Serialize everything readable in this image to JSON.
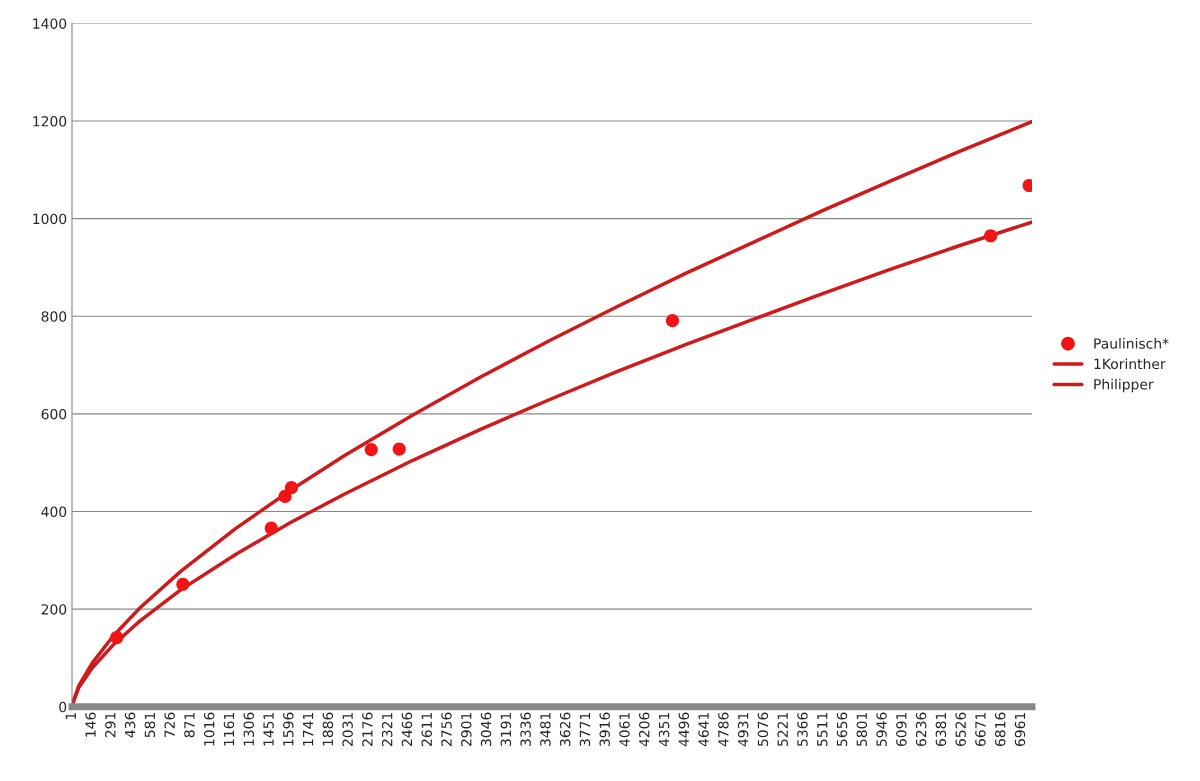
{
  "chart_data": {
    "type": "line",
    "xlim": [
      1,
      7040
    ],
    "xticks": [
      1,
      146,
      291,
      436,
      581,
      726,
      871,
      1016,
      1161,
      1306,
      1451,
      1596,
      1741,
      1886,
      2031,
      2176,
      2321,
      2466,
      2611,
      2756,
      2901,
      3046,
      3191,
      3336,
      3481,
      3626,
      3771,
      3916,
      4061,
      4206,
      4351,
      4496,
      4641,
      4786,
      4931,
      5076,
      5221,
      5366,
      5511,
      5656,
      5801,
      5946,
      6091,
      6236,
      6381,
      6526,
      6671,
      6816,
      6961
    ],
    "ylim": [
      0,
      1400
    ],
    "yticks": [
      0,
      200,
      400,
      600,
      800,
      1000,
      1200,
      1400
    ],
    "grid": "y",
    "legend": "right",
    "series": [
      {
        "name": "Paulinisch*",
        "type": "scatter",
        "marker": "circle",
        "color": "#f01414",
        "x": [
          329,
          814,
          1462,
          1563,
          1610,
          2195,
          2400,
          4404,
          6737,
          7019
        ],
        "values": [
          142,
          251,
          366,
          431,
          449,
          527,
          528,
          791,
          965,
          1068
        ]
      },
      {
        "name": "1Korinther",
        "marker": "none",
        "color": "#d0191b",
        "x": [
          1,
          50,
          150,
          300,
          500,
          800,
          1200,
          1600,
          2000,
          2500,
          3000,
          3500,
          4000,
          4500,
          5000,
          5500,
          6000,
          6500,
          7040
        ],
        "values": [
          3,
          43,
          90,
          144,
          203,
          278,
          365,
          443,
          515,
          598,
          676,
          750,
          820,
          888,
          952,
          1016,
          1077,
          1137,
          1199
        ]
      },
      {
        "name": "Philipper",
        "marker": "none",
        "color": "#d0191b",
        "x": [
          1,
          50,
          150,
          300,
          500,
          800,
          1200,
          1600,
          2000,
          2500,
          3000,
          3500,
          4000,
          4500,
          5000,
          5500,
          6000,
          6500,
          7040
        ],
        "values": [
          3,
          39,
          80,
          126,
          176,
          240,
          312,
          377,
          436,
          505,
          569,
          629,
          687,
          742,
          794,
          846,
          896,
          944,
          993
        ]
      }
    ]
  }
}
